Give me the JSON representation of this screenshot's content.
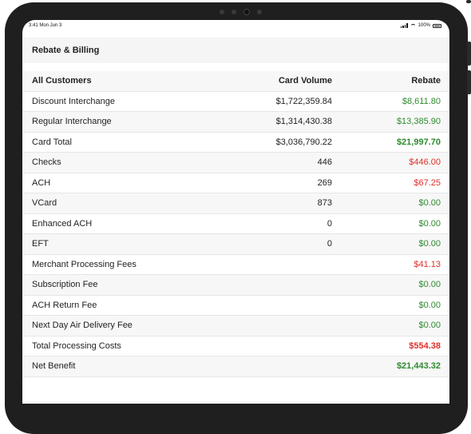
{
  "status_bar": {
    "time": "3:41 Mon Jun 3",
    "battery": "100%"
  },
  "page": {
    "title": "Rebate & Billing"
  },
  "table": {
    "headers": {
      "label": "All Customers",
      "volume": "Card Volume",
      "rebate": "Rebate"
    },
    "rows": [
      {
        "label": "Discount Interchange",
        "volume": "$1,722,359.84",
        "rebate": "$8,611.80",
        "color": "green",
        "bold": false
      },
      {
        "label": "Regular Interchange",
        "volume": "$1,314,430.38",
        "rebate": "$13,385.90",
        "color": "green",
        "bold": false
      },
      {
        "label": "Card Total",
        "volume": "$3,036,790.22",
        "rebate": "$21,997.70",
        "color": "green",
        "bold": true
      },
      {
        "label": "Checks",
        "volume": "446",
        "rebate": "$446.00",
        "color": "red",
        "bold": false
      },
      {
        "label": "ACH",
        "volume": "269",
        "rebate": "$67.25",
        "color": "red",
        "bold": false
      },
      {
        "label": "VCard",
        "volume": "873",
        "rebate": "$0.00",
        "color": "green",
        "bold": false
      },
      {
        "label": "Enhanced ACH",
        "volume": "0",
        "rebate": "$0.00",
        "color": "green",
        "bold": false
      },
      {
        "label": "EFT",
        "volume": "0",
        "rebate": "$0.00",
        "color": "green",
        "bold": false
      },
      {
        "label": "Merchant Processing Fees",
        "volume": "",
        "rebate": "$41.13",
        "color": "red",
        "bold": false
      },
      {
        "label": "Subscription Fee",
        "volume": "",
        "rebate": "$0.00",
        "color": "green",
        "bold": false
      },
      {
        "label": "ACH Return Fee",
        "volume": "",
        "rebate": "$0.00",
        "color": "green",
        "bold": false
      },
      {
        "label": "Next Day Air Delivery Fee",
        "volume": "",
        "rebate": "$0.00",
        "color": "green",
        "bold": false
      },
      {
        "label": "Total Processing Costs",
        "volume": "",
        "rebate": "$554.38",
        "color": "red",
        "bold": true
      },
      {
        "label": "Net Benefit",
        "volume": "",
        "rebate": "$21,443.32",
        "color": "green",
        "bold": true
      }
    ]
  },
  "colors": {
    "positive": "#2e8b2e",
    "negative": "#e0302a"
  }
}
